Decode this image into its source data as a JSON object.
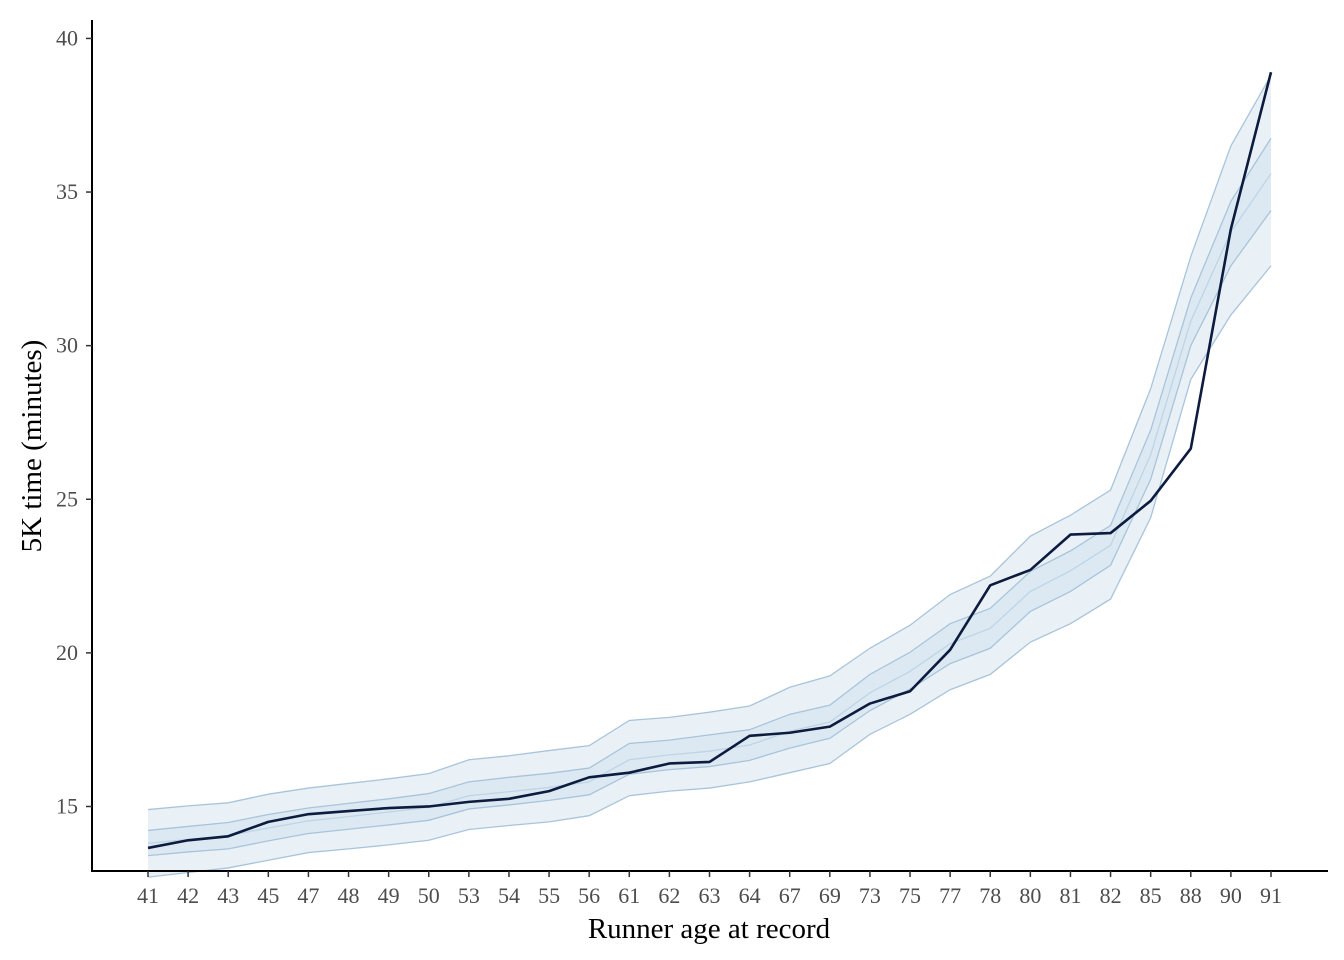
{
  "chart_data": {
    "type": "line",
    "xlabel": "Runner age at record",
    "ylabel": "5K time (minutes)",
    "ylim": [
      12.9,
      40.6
    ],
    "yticks": [
      15,
      20,
      25,
      30,
      35,
      40
    ],
    "grid": false,
    "legend": "none",
    "categories": [
      "41",
      "42",
      "43",
      "45",
      "47",
      "48",
      "49",
      "50",
      "53",
      "54",
      "55",
      "56",
      "61",
      "62",
      "63",
      "64",
      "67",
      "69",
      "73",
      "75",
      "77",
      "78",
      "80",
      "81",
      "82",
      "85",
      "88",
      "90",
      "91"
    ],
    "series": [
      {
        "values": [
          13.65,
          13.9,
          14.03,
          14.5,
          14.75,
          14.85,
          14.95,
          15.0,
          15.15,
          15.25,
          15.5,
          15.95,
          16.1,
          16.4,
          16.45,
          17.3,
          17.4,
          17.6,
          18.35,
          18.75,
          20.1,
          22.2,
          22.7,
          23.85,
          23.9,
          24.95,
          26.65,
          33.8,
          38.9
        ],
        "color": "#0d1b3e"
      }
    ],
    "bands": {
      "outer": {
        "lower": [
          12.7,
          12.85,
          13.0,
          13.25,
          13.5,
          13.62,
          13.75,
          13.9,
          14.25,
          14.38,
          14.5,
          14.7,
          15.35,
          15.5,
          15.6,
          15.8,
          16.1,
          16.4,
          17.35,
          18.0,
          18.8,
          19.3,
          20.35,
          20.95,
          21.75,
          24.4,
          28.9,
          31.0,
          32.6
        ],
        "upper": [
          14.9,
          15.02,
          15.12,
          15.4,
          15.6,
          15.75,
          15.9,
          16.07,
          16.52,
          16.65,
          16.82,
          16.98,
          17.8,
          17.9,
          18.07,
          18.27,
          18.88,
          19.25,
          20.15,
          20.9,
          21.9,
          22.5,
          23.8,
          24.48,
          25.3,
          28.6,
          32.9,
          36.5,
          38.8
        ],
        "fill": "#cfdfeb",
        "stroke": "#a9c4da"
      },
      "inner": {
        "lower": [
          13.4,
          13.52,
          13.62,
          13.88,
          14.12,
          14.26,
          14.4,
          14.55,
          14.92,
          15.05,
          15.2,
          15.38,
          16.05,
          16.2,
          16.3,
          16.5,
          16.9,
          17.22,
          18.12,
          18.82,
          19.65,
          20.15,
          21.35,
          22.0,
          22.85,
          25.65,
          30.0,
          32.6,
          34.4
        ],
        "upper": [
          14.22,
          14.35,
          14.48,
          14.74,
          14.95,
          15.1,
          15.25,
          15.42,
          15.8,
          15.95,
          16.08,
          16.25,
          17.05,
          17.16,
          17.33,
          17.5,
          18.0,
          18.3,
          19.3,
          20.02,
          20.95,
          21.45,
          22.65,
          23.32,
          24.15,
          27.25,
          31.55,
          34.7,
          36.75
        ],
        "fill": "#d7e6f1",
        "stroke": "#a9c4da"
      },
      "median": {
        "values": [
          13.8,
          13.93,
          14.05,
          14.3,
          14.53,
          14.67,
          14.82,
          14.97,
          15.35,
          15.48,
          15.62,
          15.8,
          16.52,
          16.68,
          16.8,
          17.0,
          17.45,
          17.75,
          18.7,
          19.4,
          20.3,
          20.8,
          22.0,
          22.67,
          23.5,
          26.45,
          30.8,
          33.7,
          35.6
        ],
        "stroke": "#bfd4e4"
      }
    }
  }
}
